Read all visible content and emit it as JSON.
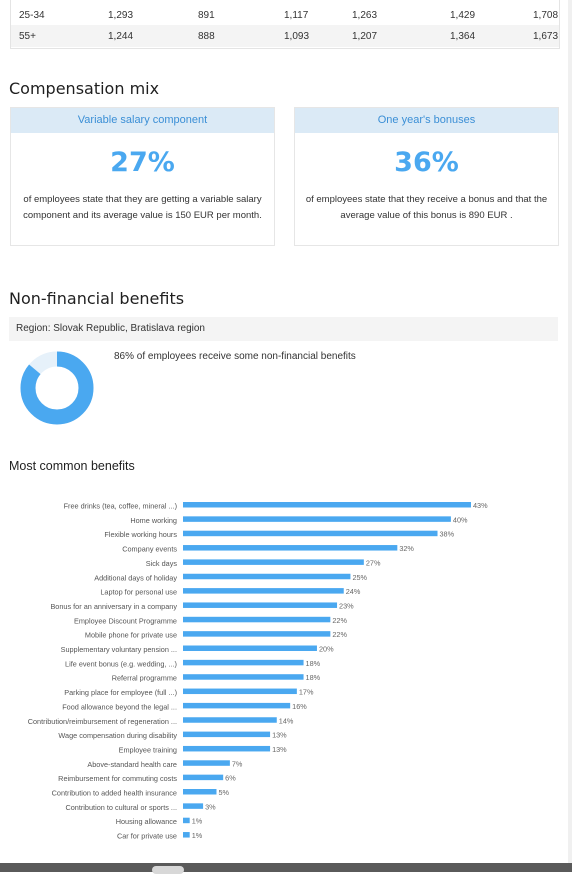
{
  "salary_table": {
    "rows": [
      {
        "age": "25-34",
        "values": [
          "1,293",
          "891",
          "1,117",
          "1,263",
          "1,429",
          "1,708"
        ]
      },
      {
        "age": "55+",
        "values": [
          "1,244",
          "888",
          "1,093",
          "1,207",
          "1,364",
          "1,673"
        ]
      }
    ]
  },
  "compensation": {
    "title": "Compensation mix",
    "variable": {
      "heading": "Variable salary component",
      "value": "27%",
      "description": "of employees state that they are getting a variable salary component and its average value is 150 EUR per month."
    },
    "bonuses": {
      "heading": "One year's bonuses",
      "value": "36%",
      "description": "of employees state that they receive a bonus and that the average value of this bonus is 890 EUR ."
    }
  },
  "nonfinancial": {
    "title": "Non-financial benefits",
    "region": "Region: Slovak Republic, Bratislava region",
    "summary": "86% of employees receive some non-financial benefits",
    "share_percent": 86
  },
  "colors": {
    "accent": "#4aa8f0",
    "accent_light": "#dbeaf6",
    "donut_rest": "#e6f1fa"
  },
  "most_common_title": "Most common benefits",
  "chart_data": {
    "type": "bar",
    "orientation": "horizontal",
    "title": "Most common benefits",
    "categories": [
      "Free drinks (tea, coffee, mineral ...)",
      "Home working",
      "Flexible working hours",
      "Company events",
      "Sick days",
      "Additional days of holiday",
      "Laptop for personal use",
      "Bonus for an anniversary in a company",
      "Employee Discount Programme",
      "Mobile phone for private use",
      "Supplementary voluntary pension ...",
      "Life event bonus (e.g. wedding, ...)",
      "Referral programme",
      "Parking place for employee (full ...)",
      "Food allowance beyond the legal ...",
      "Contribution/reimbursement of regeneration ...",
      "Wage compensation during disability",
      "Employee training",
      "Above-standard health care",
      "Reimbursement for commuting costs",
      "Contribution to added health insurance",
      "Contribution to cultural or sports ...",
      "Housing allowance",
      "Car for private use"
    ],
    "values": [
      43,
      40,
      38,
      32,
      27,
      25,
      24,
      23,
      22,
      22,
      20,
      18,
      18,
      17,
      16,
      14,
      13,
      13,
      7,
      6,
      5,
      3,
      1,
      1
    ],
    "labels": [
      "43%",
      "40%",
      "38%",
      "32%",
      "27%",
      "25%",
      "24%",
      "23%",
      "22%",
      "22%",
      "20%",
      "18%",
      "18%",
      "17%",
      "16%",
      "14%",
      "13%",
      "13%",
      "7%",
      "6%",
      "5%",
      "3%",
      "1%",
      "1%"
    ],
    "color": "#4aa8f0",
    "xlim": [
      0,
      43
    ]
  }
}
